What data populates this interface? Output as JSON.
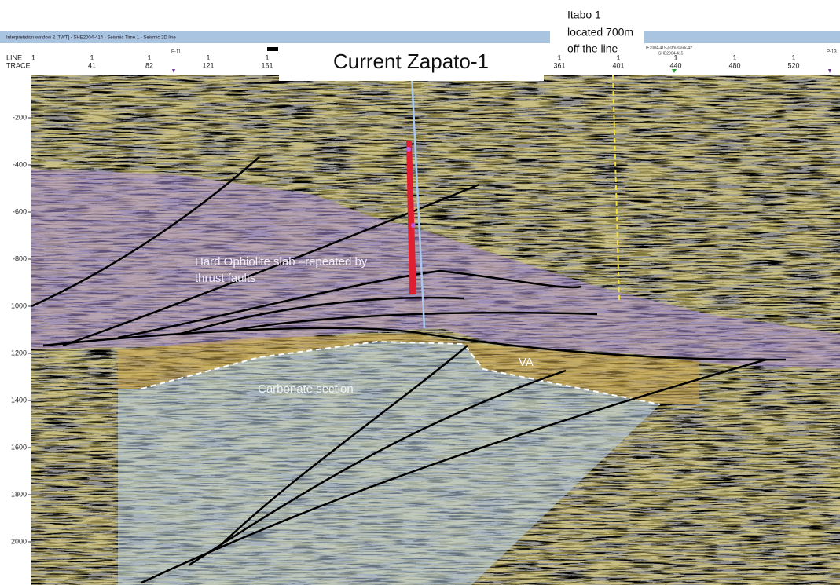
{
  "window": {
    "title": "Interpretation window 2 [TWT] - SHE2004-414 - Seismic Time 1 - Seismic 2D line",
    "right_title": [
      "IE2004-415-pstm-stack-42",
      "SHE2004-415"
    ]
  },
  "header": {
    "line_label": "LINE",
    "trace_label": "TRACE",
    "line_number": "1",
    "traces": [
      {
        "line": "1",
        "trace": "41"
      },
      {
        "line": "1",
        "trace": "82"
      },
      {
        "line": "1",
        "trace": "121"
      },
      {
        "line": "1",
        "trace": "161"
      },
      {
        "line": "1",
        "trace": "361"
      },
      {
        "line": "1",
        "trace": "401"
      },
      {
        "line": "1",
        "trace": "440"
      },
      {
        "line": "1",
        "trace": "480"
      },
      {
        "line": "1",
        "trace": "520"
      }
    ],
    "markers": [
      "P-11",
      "P-13"
    ]
  },
  "depth_labels": [
    "-200",
    "-400",
    "-600",
    "-800",
    "1000",
    "1200",
    "1400",
    "1600",
    "1800",
    "2000"
  ],
  "callouts": {
    "title": "Current Zapato-1",
    "well_note": [
      "Itabo 1",
      "located 700m",
      "off the line"
    ]
  },
  "annotations": {
    "ophiolite": [
      "Hard Ophiolite slab –repeated by",
      "thrust faults"
    ],
    "carbonate": "Carbonate section",
    "va": "VA"
  }
}
